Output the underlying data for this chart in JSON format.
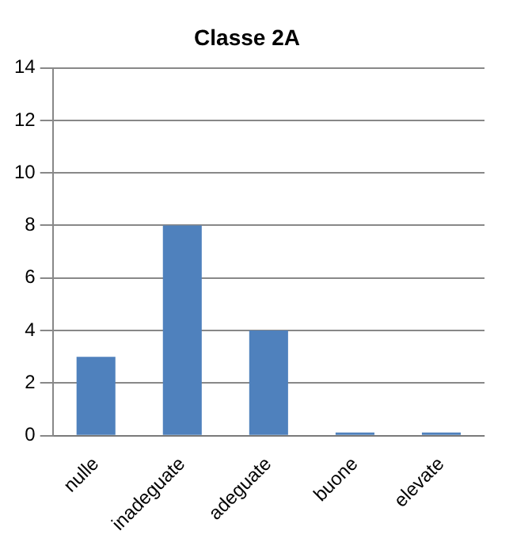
{
  "chart_data": {
    "type": "bar",
    "title": "Classe 2A",
    "categories": [
      "nulle",
      "inadeguate",
      "adeguate",
      "buone",
      "elevate"
    ],
    "values": [
      3,
      8,
      4,
      0,
      0
    ],
    "color": "#4f81bd",
    "ylim": [
      0,
      14
    ],
    "yticks": [
      0,
      2,
      4,
      6,
      8,
      10,
      12,
      14
    ],
    "grid": "y"
  }
}
